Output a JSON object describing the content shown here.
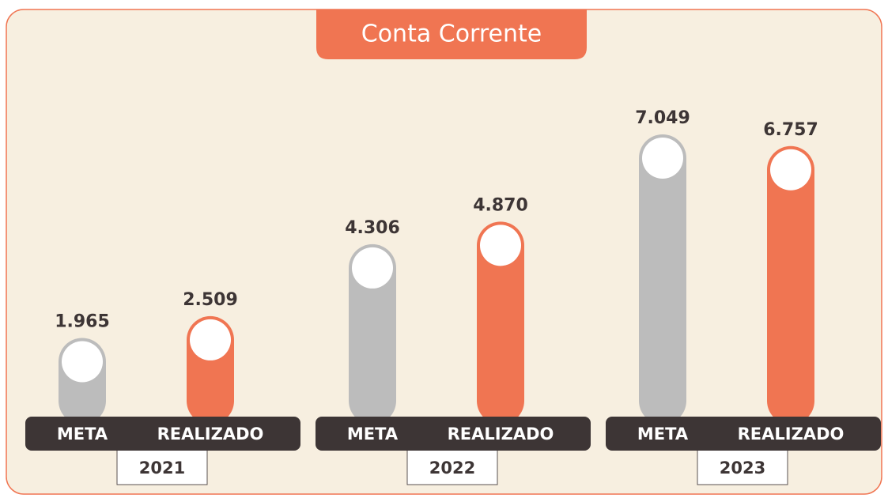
{
  "chart_data": {
    "type": "bar",
    "title": "Conta Corrente",
    "categories": [
      "2021",
      "2022",
      "2023"
    ],
    "series": [
      {
        "name": "META",
        "color": "#bcbcbc",
        "values": [
          1965,
          4306,
          7049
        ],
        "value_labels": [
          "1.965",
          "4.306",
          "7.049"
        ]
      },
      {
        "name": "REALIZADO",
        "color": "#f07552",
        "values": [
          2509,
          4870,
          6757
        ],
        "value_labels": [
          "2.509",
          "4.870",
          "6.757"
        ]
      }
    ]
  }
}
